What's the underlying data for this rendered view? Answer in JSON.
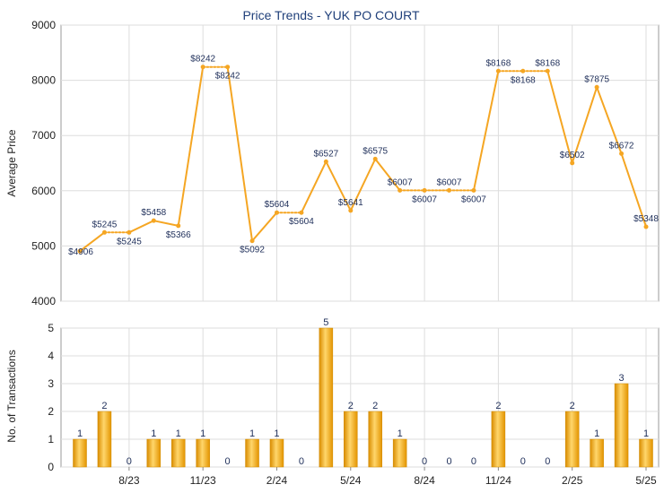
{
  "chart_data": [
    {
      "type": "line",
      "title": "Price Trends - YUK PO COURT",
      "ylabel": "Average Price",
      "ylim": [
        4000,
        9000
      ],
      "yticks": [
        4000,
        5000,
        6000,
        7000,
        8000,
        9000
      ],
      "grid": true,
      "series_color": "#f5a623",
      "points": [
        {
          "v": 4906,
          "label": "$4906",
          "pos": "right"
        },
        {
          "v": 5245,
          "label": "$5245",
          "pos": "above"
        },
        {
          "v": 5245,
          "label": "$5245",
          "pos": "below"
        },
        {
          "v": 5458,
          "label": "$5458",
          "pos": "above"
        },
        {
          "v": 5366,
          "label": "$5366",
          "pos": "below"
        },
        {
          "v": 8242,
          "label": "$8242",
          "pos": "above"
        },
        {
          "v": 8242,
          "label": "$8242",
          "pos": "below"
        },
        {
          "v": 5092,
          "label": "$5092",
          "pos": "below"
        },
        {
          "v": 5604,
          "label": "$5604",
          "pos": "above"
        },
        {
          "v": 5604,
          "label": "$5604",
          "pos": "below"
        },
        {
          "v": 6527,
          "label": "$6527",
          "pos": "above"
        },
        {
          "v": 5641,
          "label": "$5641",
          "pos": "above"
        },
        {
          "v": 6575,
          "label": "$6575",
          "pos": "above"
        },
        {
          "v": 6007,
          "label": "$6007",
          "pos": "above"
        },
        {
          "v": 6007,
          "label": "$6007",
          "pos": "below"
        },
        {
          "v": 6007,
          "label": "$6007",
          "pos": "above"
        },
        {
          "v": 6007,
          "label": "$6007",
          "pos": "below"
        },
        {
          "v": 8168,
          "label": "$8168",
          "pos": "above"
        },
        {
          "v": 8168,
          "label": "$8168",
          "pos": "below"
        },
        {
          "v": 8168,
          "label": "$8168",
          "pos": "above"
        },
        {
          "v": 6502,
          "label": "$6502",
          "pos": "above"
        },
        {
          "v": 7875,
          "label": "$7875",
          "pos": "above"
        },
        {
          "v": 6672,
          "label": "$6672",
          "pos": "above"
        },
        {
          "v": 5348,
          "label": "$5348",
          "pos": "above"
        }
      ]
    },
    {
      "type": "bar",
      "ylabel": "No. of Transactions",
      "ylim": [
        0,
        5
      ],
      "yticks": [
        0,
        1,
        2,
        3,
        4,
        5
      ],
      "grid": true,
      "values": [
        1,
        2,
        0,
        1,
        1,
        1,
        0,
        1,
        1,
        0,
        5,
        2,
        2,
        1,
        0,
        0,
        0,
        2,
        0,
        0,
        2,
        1,
        3,
        1
      ],
      "xtick_labels": [
        {
          "idx": 2,
          "label": "8/23"
        },
        {
          "idx": 5,
          "label": "11/23"
        },
        {
          "idx": 8,
          "label": "2/24"
        },
        {
          "idx": 11,
          "label": "5/24"
        },
        {
          "idx": 14,
          "label": "8/24"
        },
        {
          "idx": 17,
          "label": "11/24"
        },
        {
          "idx": 20,
          "label": "2/25"
        },
        {
          "idx": 23,
          "label": "5/25"
        }
      ],
      "bar_color": "#f0a818"
    }
  ]
}
